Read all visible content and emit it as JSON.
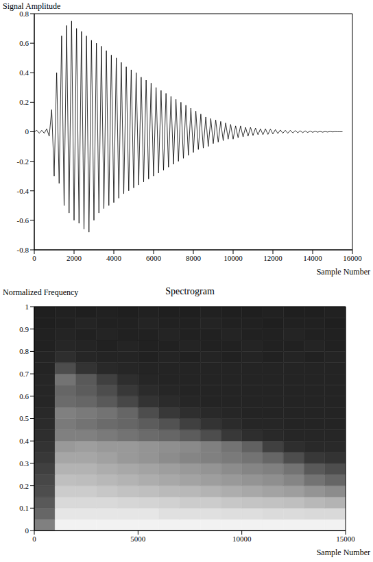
{
  "chart_data": [
    {
      "type": "line",
      "y_label": "Signal Amplitude",
      "x_label": "Sample Number",
      "color": "#000000",
      "xlim": [
        0,
        16000
      ],
      "xticks": [
        0,
        2000,
        4000,
        6000,
        8000,
        10000,
        12000,
        14000,
        16000
      ],
      "ylim": [
        -0.8,
        0.8
      ],
      "yticks": [
        -0.8,
        -0.6,
        -0.4,
        -0.2,
        0,
        0.2,
        0.4,
        0.6,
        0.8
      ],
      "x": [
        0,
        125,
        250,
        375,
        500,
        625,
        750,
        875,
        1000,
        1125,
        1250,
        1375,
        1500,
        1625,
        1750,
        1875,
        2000,
        2125,
        2250,
        2375,
        2500,
        2625,
        2750,
        2875,
        3000,
        3125,
        3250,
        3375,
        3500,
        3625,
        3750,
        3875,
        4000,
        4125,
        4250,
        4375,
        4500,
        4625,
        4750,
        4875,
        5000,
        5125,
        5250,
        5375,
        5500,
        5625,
        5750,
        5875,
        6000,
        6125,
        6250,
        6375,
        6500,
        6625,
        6750,
        6875,
        7000,
        7125,
        7250,
        7375,
        7500,
        7625,
        7750,
        7875,
        8000,
        8125,
        8250,
        8375,
        8500,
        8625,
        8750,
        8875,
        9000,
        9125,
        9250,
        9375,
        9500,
        9625,
        9750,
        9875,
        10000,
        10125,
        10250,
        10375,
        10500,
        10625,
        10750,
        10875,
        11000,
        11125,
        11250,
        11375,
        11500,
        11625,
        11750,
        11875,
        12000,
        12125,
        12250,
        12375,
        12500,
        12625,
        12750,
        12875,
        13000,
        13125,
        13250,
        13375,
        13500,
        13625,
        13750,
        13875,
        14000,
        14125,
        14250,
        14375,
        14500,
        14625,
        14750,
        14875,
        15000,
        15125,
        15250,
        15375,
        15500
      ],
      "values": [
        0,
        0.01,
        -0.01,
        0.01,
        -0.01,
        0.02,
        -0.03,
        0.15,
        -0.3,
        0.4,
        -0.35,
        0.65,
        -0.5,
        0.72,
        -0.55,
        0.75,
        -0.6,
        0.7,
        -0.62,
        0.68,
        -0.66,
        0.65,
        -0.68,
        0.62,
        -0.6,
        0.6,
        -0.55,
        0.58,
        -0.52,
        0.55,
        -0.5,
        0.52,
        -0.48,
        0.5,
        -0.45,
        0.47,
        -0.42,
        0.44,
        -0.4,
        0.42,
        -0.38,
        0.4,
        -0.36,
        0.37,
        -0.34,
        0.35,
        -0.32,
        0.33,
        -0.3,
        0.3,
        -0.28,
        0.28,
        -0.26,
        0.26,
        -0.24,
        0.24,
        -0.22,
        0.22,
        -0.2,
        0.2,
        -0.18,
        0.18,
        -0.16,
        0.16,
        -0.14,
        0.14,
        -0.12,
        0.12,
        -0.11,
        0.1,
        -0.1,
        0.09,
        -0.08,
        0.08,
        -0.07,
        0.07,
        -0.06,
        0.06,
        -0.05,
        0.05,
        -0.05,
        0.04,
        -0.04,
        0.04,
        -0.035,
        0.03,
        -0.03,
        0.03,
        -0.025,
        0.025,
        -0.02,
        0.02,
        -0.02,
        0.02,
        -0.018,
        0.018,
        -0.015,
        0.015,
        -0.012,
        0.012,
        -0.01,
        0.01,
        -0.01,
        0.01,
        -0.008,
        0.008,
        -0.007,
        0.007,
        -0.006,
        0.006,
        -0.005,
        0.005,
        -0.004,
        0.004,
        -0.003,
        0.003,
        -0.003,
        0.002,
        -0.002,
        0.002,
        -0.001,
        0.001,
        0,
        0,
        0
      ]
    },
    {
      "type": "heatmap",
      "title": "Spectrogram",
      "y_label": "Normalized Frequency",
      "x_label": "Sample Number",
      "xlim": [
        0,
        15000
      ],
      "xticks": [
        0,
        5000,
        10000,
        15000
      ],
      "ylim": [
        0,
        1
      ],
      "yticks": [
        0,
        0.1,
        0.2,
        0.3,
        0.4,
        0.5,
        0.6,
        0.7,
        0.8,
        0.9,
        1
      ],
      "cells": {
        "x_edges": [
          0,
          1000,
          2000,
          3000,
          4000,
          5000,
          6000,
          7000,
          8000,
          9000,
          10000,
          11000,
          12000,
          13000,
          14000,
          15000
        ],
        "y_edges": [
          0,
          0.05,
          0.1,
          0.15,
          0.2,
          0.25,
          0.3,
          0.35,
          0.4,
          0.45,
          0.5,
          0.55,
          0.6,
          0.65,
          0.7,
          0.75,
          0.8,
          0.85,
          0.9,
          0.95,
          1
        ],
        "values": [
          [
            0.5,
            0.95,
            0.95,
            0.95,
            0.95,
            0.95,
            0.95,
            0.95,
            0.95,
            0.95,
            0.95,
            0.95,
            0.95,
            0.95,
            0.95
          ],
          [
            0.4,
            0.9,
            0.9,
            0.9,
            0.9,
            0.9,
            0.88,
            0.88,
            0.88,
            0.87,
            0.87,
            0.86,
            0.86,
            0.85,
            0.85
          ],
          [
            0.35,
            0.85,
            0.85,
            0.85,
            0.84,
            0.83,
            0.82,
            0.8,
            0.8,
            0.78,
            0.77,
            0.76,
            0.75,
            0.72,
            0.7
          ],
          [
            0.3,
            0.8,
            0.8,
            0.78,
            0.76,
            0.75,
            0.73,
            0.72,
            0.7,
            0.68,
            0.66,
            0.64,
            0.62,
            0.58,
            0.55
          ],
          [
            0.28,
            0.75,
            0.74,
            0.72,
            0.7,
            0.68,
            0.66,
            0.64,
            0.62,
            0.6,
            0.58,
            0.56,
            0.52,
            0.45,
            0.4
          ],
          [
            0.25,
            0.7,
            0.7,
            0.68,
            0.66,
            0.64,
            0.62,
            0.6,
            0.58,
            0.55,
            0.52,
            0.5,
            0.45,
            0.35,
            0.3
          ],
          [
            0.22,
            0.65,
            0.65,
            0.63,
            0.6,
            0.58,
            0.55,
            0.52,
            0.5,
            0.48,
            0.45,
            0.4,
            0.3,
            0.22,
            0.2
          ],
          [
            0.2,
            0.6,
            0.62,
            0.6,
            0.6,
            0.58,
            0.56,
            0.54,
            0.5,
            0.45,
            0.38,
            0.25,
            0.18,
            0.16,
            0.16
          ],
          [
            0.18,
            0.5,
            0.5,
            0.48,
            0.45,
            0.42,
            0.4,
            0.36,
            0.3,
            0.22,
            0.18,
            0.16,
            0.15,
            0.15,
            0.15
          ],
          [
            0.17,
            0.48,
            0.45,
            0.42,
            0.4,
            0.36,
            0.32,
            0.25,
            0.2,
            0.17,
            0.15,
            0.15,
            0.14,
            0.14,
            0.14
          ],
          [
            0.16,
            0.5,
            0.48,
            0.45,
            0.4,
            0.3,
            0.22,
            0.18,
            0.16,
            0.15,
            0.14,
            0.14,
            0.14,
            0.14,
            0.14
          ],
          [
            0.15,
            0.42,
            0.4,
            0.35,
            0.28,
            0.2,
            0.17,
            0.15,
            0.14,
            0.14,
            0.14,
            0.14,
            0.14,
            0.14,
            0.14
          ],
          [
            0.15,
            0.4,
            0.36,
            0.3,
            0.22,
            0.17,
            0.15,
            0.14,
            0.14,
            0.14,
            0.14,
            0.14,
            0.14,
            0.14,
            0.14
          ],
          [
            0.15,
            0.45,
            0.35,
            0.25,
            0.18,
            0.15,
            0.14,
            0.14,
            0.14,
            0.14,
            0.14,
            0.14,
            0.14,
            0.14,
            0.14
          ],
          [
            0.14,
            0.3,
            0.2,
            0.16,
            0.15,
            0.14,
            0.14,
            0.14,
            0.14,
            0.14,
            0.14,
            0.14,
            0.14,
            0.14,
            0.14
          ],
          [
            0.14,
            0.18,
            0.15,
            0.14,
            0.14,
            0.13,
            0.14,
            0.13,
            0.14,
            0.13,
            0.14,
            0.13,
            0.14,
            0.13,
            0.14
          ],
          [
            0.13,
            0.15,
            0.14,
            0.13,
            0.14,
            0.13,
            0.13,
            0.14,
            0.13,
            0.13,
            0.14,
            0.13,
            0.13,
            0.14,
            0.13
          ],
          [
            0.13,
            0.14,
            0.13,
            0.14,
            0.13,
            0.13,
            0.14,
            0.13,
            0.13,
            0.14,
            0.13,
            0.13,
            0.14,
            0.13,
            0.13
          ],
          [
            0.12,
            0.13,
            0.14,
            0.13,
            0.13,
            0.14,
            0.13,
            0.13,
            0.14,
            0.13,
            0.13,
            0.12,
            0.13,
            0.13,
            0.12
          ],
          [
            0.12,
            0.13,
            0.12,
            0.13,
            0.12,
            0.13,
            0.12,
            0.12,
            0.13,
            0.12,
            0.12,
            0.13,
            0.12,
            0.12,
            0.13
          ]
        ]
      }
    }
  ]
}
